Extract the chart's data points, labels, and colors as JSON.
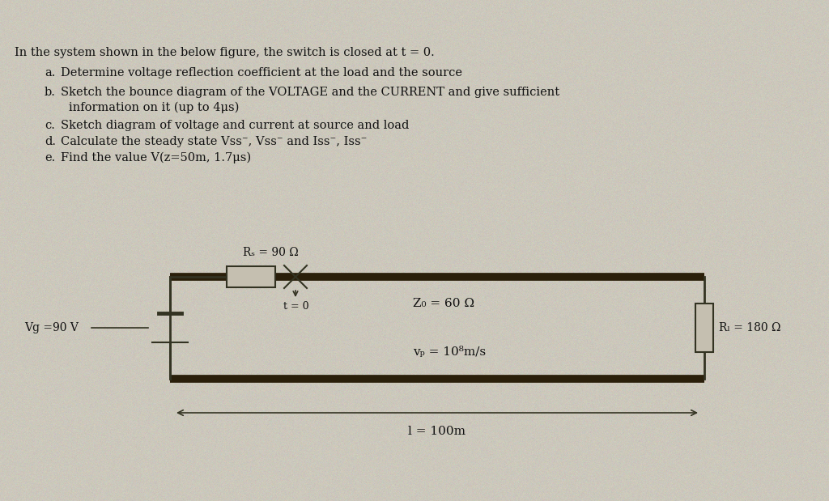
{
  "background_color": "#ccc8bc",
  "title_text": "In the system shown in the below figure, the switch is closed at t = 0.",
  "q_a": "Determine voltage reflection coefficient at the load and the source",
  "q_b1": "Sketch the bounce diagram of the VOLTAGE and the CURRENT and give sufficient",
  "q_b2": "information on it (up to 4μs)",
  "q_c": "Sketch diagram of voltage and current at source and load",
  "q_d": "Calculate the steady state Vss⁻, Vss⁻ and Iss⁻, Iss⁻",
  "q_e": "Find the value V(z=50m, 1.7μs)",
  "Rs_label": "Rₛ = 90 Ω",
  "Vg_label": "Vg =90 V",
  "Zo_label": "Z₀ = 60 Ω",
  "vp_label": "vₚ = 10⁸m/s",
  "RL_label": "Rₗ = 180 Ω",
  "l_label": "l = 100m",
  "t0_label": "t = 0",
  "text_color": "#111111",
  "line_color": "#333322",
  "tline_color": "#2a1f0a",
  "font_size_title": 10.5,
  "font_size_q": 10.5,
  "font_size_circuit": 10
}
